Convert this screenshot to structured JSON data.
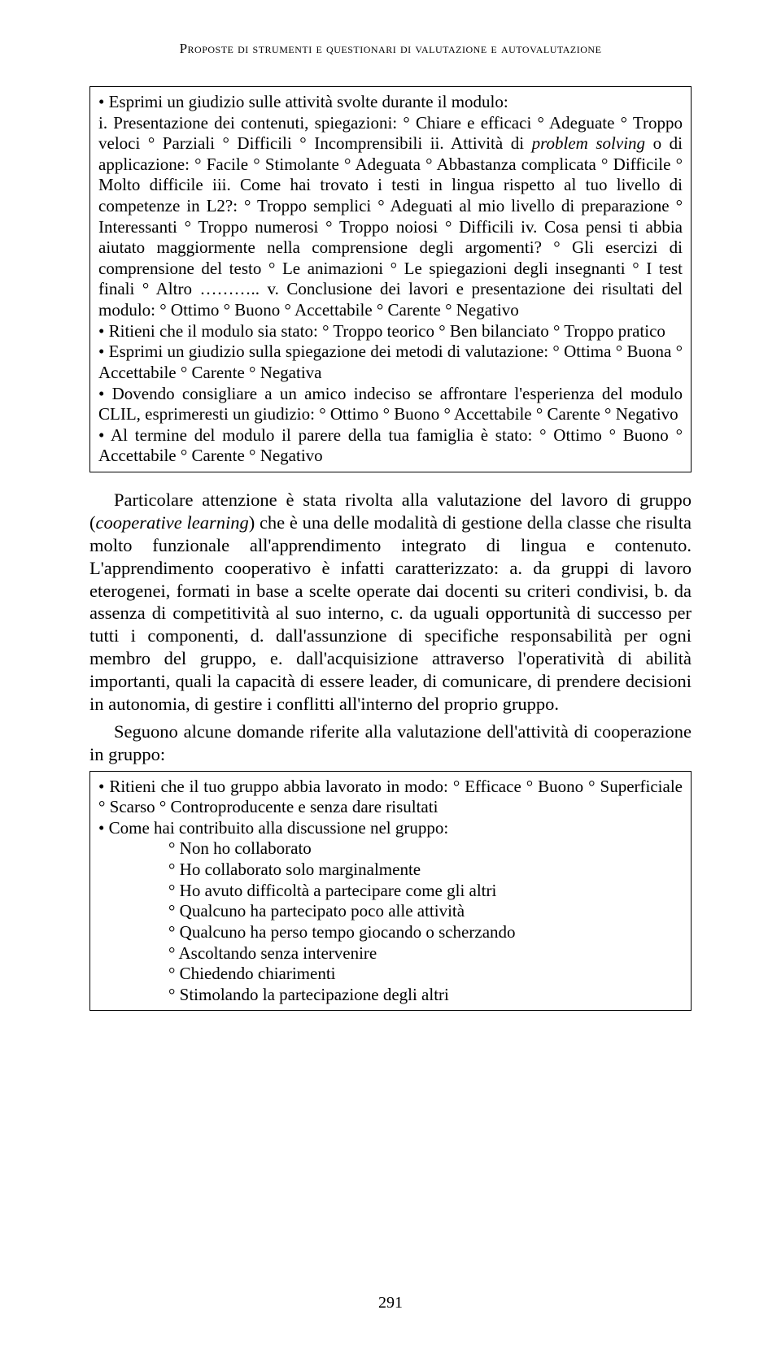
{
  "runningHead": "Proposte di strumenti e questionari di valutazione e autovalutazione",
  "box1": {
    "l1": "• Esprimi un giudizio sulle attività svolte durante il modulo:",
    "l2": "i. Presentazione dei contenuti, spiegazioni: ° Chiare e efficaci ° Adeguate ° Troppo veloci ° Parziali ° Difficili ° Incomprensibili ii. Attività di ",
    "l2_em": "problem solving",
    "l2b": " o di applicazione: ° Facile ° Stimolante ° Adeguata ° Abbastanza complicata ° Difficile ° Molto difficile iii. Come hai trovato i testi in lingua rispetto al tuo livello di competenze in L2?: ° Troppo semplici ° Adeguati al mio livello di preparazione ° Interessanti ° Troppo numerosi ° Troppo noiosi ° Difficili iv. Cosa pensi ti abbia aiutato maggiormente nella comprensione degli argomenti? ° Gli esercizi di comprensione del testo ° Le animazioni ° Le spiegazioni degli insegnanti ° I test finali ° Altro ………..  v. Conclusione dei lavori e presentazione dei risultati del modulo: ° Ottimo ° Buono ° Accettabile ° Carente ° Negativo",
    "l3": "• Ritieni che il modulo sia stato: ° Troppo teorico ° Ben bilanciato ° Troppo pratico",
    "l4": "• Esprimi un giudizio sulla spiegazione dei metodi di valutazione: ° Ottima ° Buona ° Accettabile ° Carente ° Negativa",
    "l5": "• Dovendo consigliare a un amico indeciso se affrontare l'esperienza del modulo CLIL, esprimeresti un giudizio: ° Ottimo ° Buono ° Accettabile ° Carente ° Negativo",
    "l6": "• Al termine del modulo il parere della tua famiglia è stato: ° Ottimo ° Buono ° Accettabile ° Carente ° Negativo"
  },
  "para1_a": "Particolare attenzione è stata rivolta alla valutazione del lavoro di gruppo (",
  "para1_em": "cooperative learning",
  "para1_b": ") che è una delle modalità di gestione della classe che risulta molto funzionale all'apprendimento integrato di lingua e contenuto. L'apprendimento cooperativo è infatti caratterizzato: a. da gruppi di lavoro eterogenei, formati in base a scelte operate dai docenti su criteri condivisi, b. da assenza di competitività al suo interno, c. da uguali opportunità di successo per tutti i componenti, d. dall'assunzione di specifiche responsabilità per ogni membro del gruppo, e. dall'acquisizione attraverso l'operatività di abilità importanti, quali la capacità di essere leader, di comunicare, di prendere decisioni in autonomia, di gestire i conflitti all'interno del proprio gruppo.",
  "para2": "Seguono alcune domande riferite alla valutazione dell'attività di cooperazione in gruppo:",
  "box2": {
    "l1": "• Ritieni che il tuo gruppo abbia lavorato in modo: ° Efficace ° Buono ° Superficiale ° Scarso ° Controproducente e senza dare risultati",
    "l2": "• Come hai contribuito alla discussione nel gruppo:",
    "s1": "° Non ho collaborato",
    "s2": "° Ho collaborato solo marginalmente",
    "s3": "° Ho avuto difficoltà a partecipare come gli altri",
    "s4": "° Qualcuno ha partecipato poco alle attività",
    "s5": "° Qualcuno ha perso tempo giocando o scherzando",
    "s6": "° Ascoltando senza intervenire",
    "s7": "° Chiedendo chiarimenti",
    "s8": "° Stimolando la partecipazione degli altri"
  },
  "pageNumber": "291"
}
